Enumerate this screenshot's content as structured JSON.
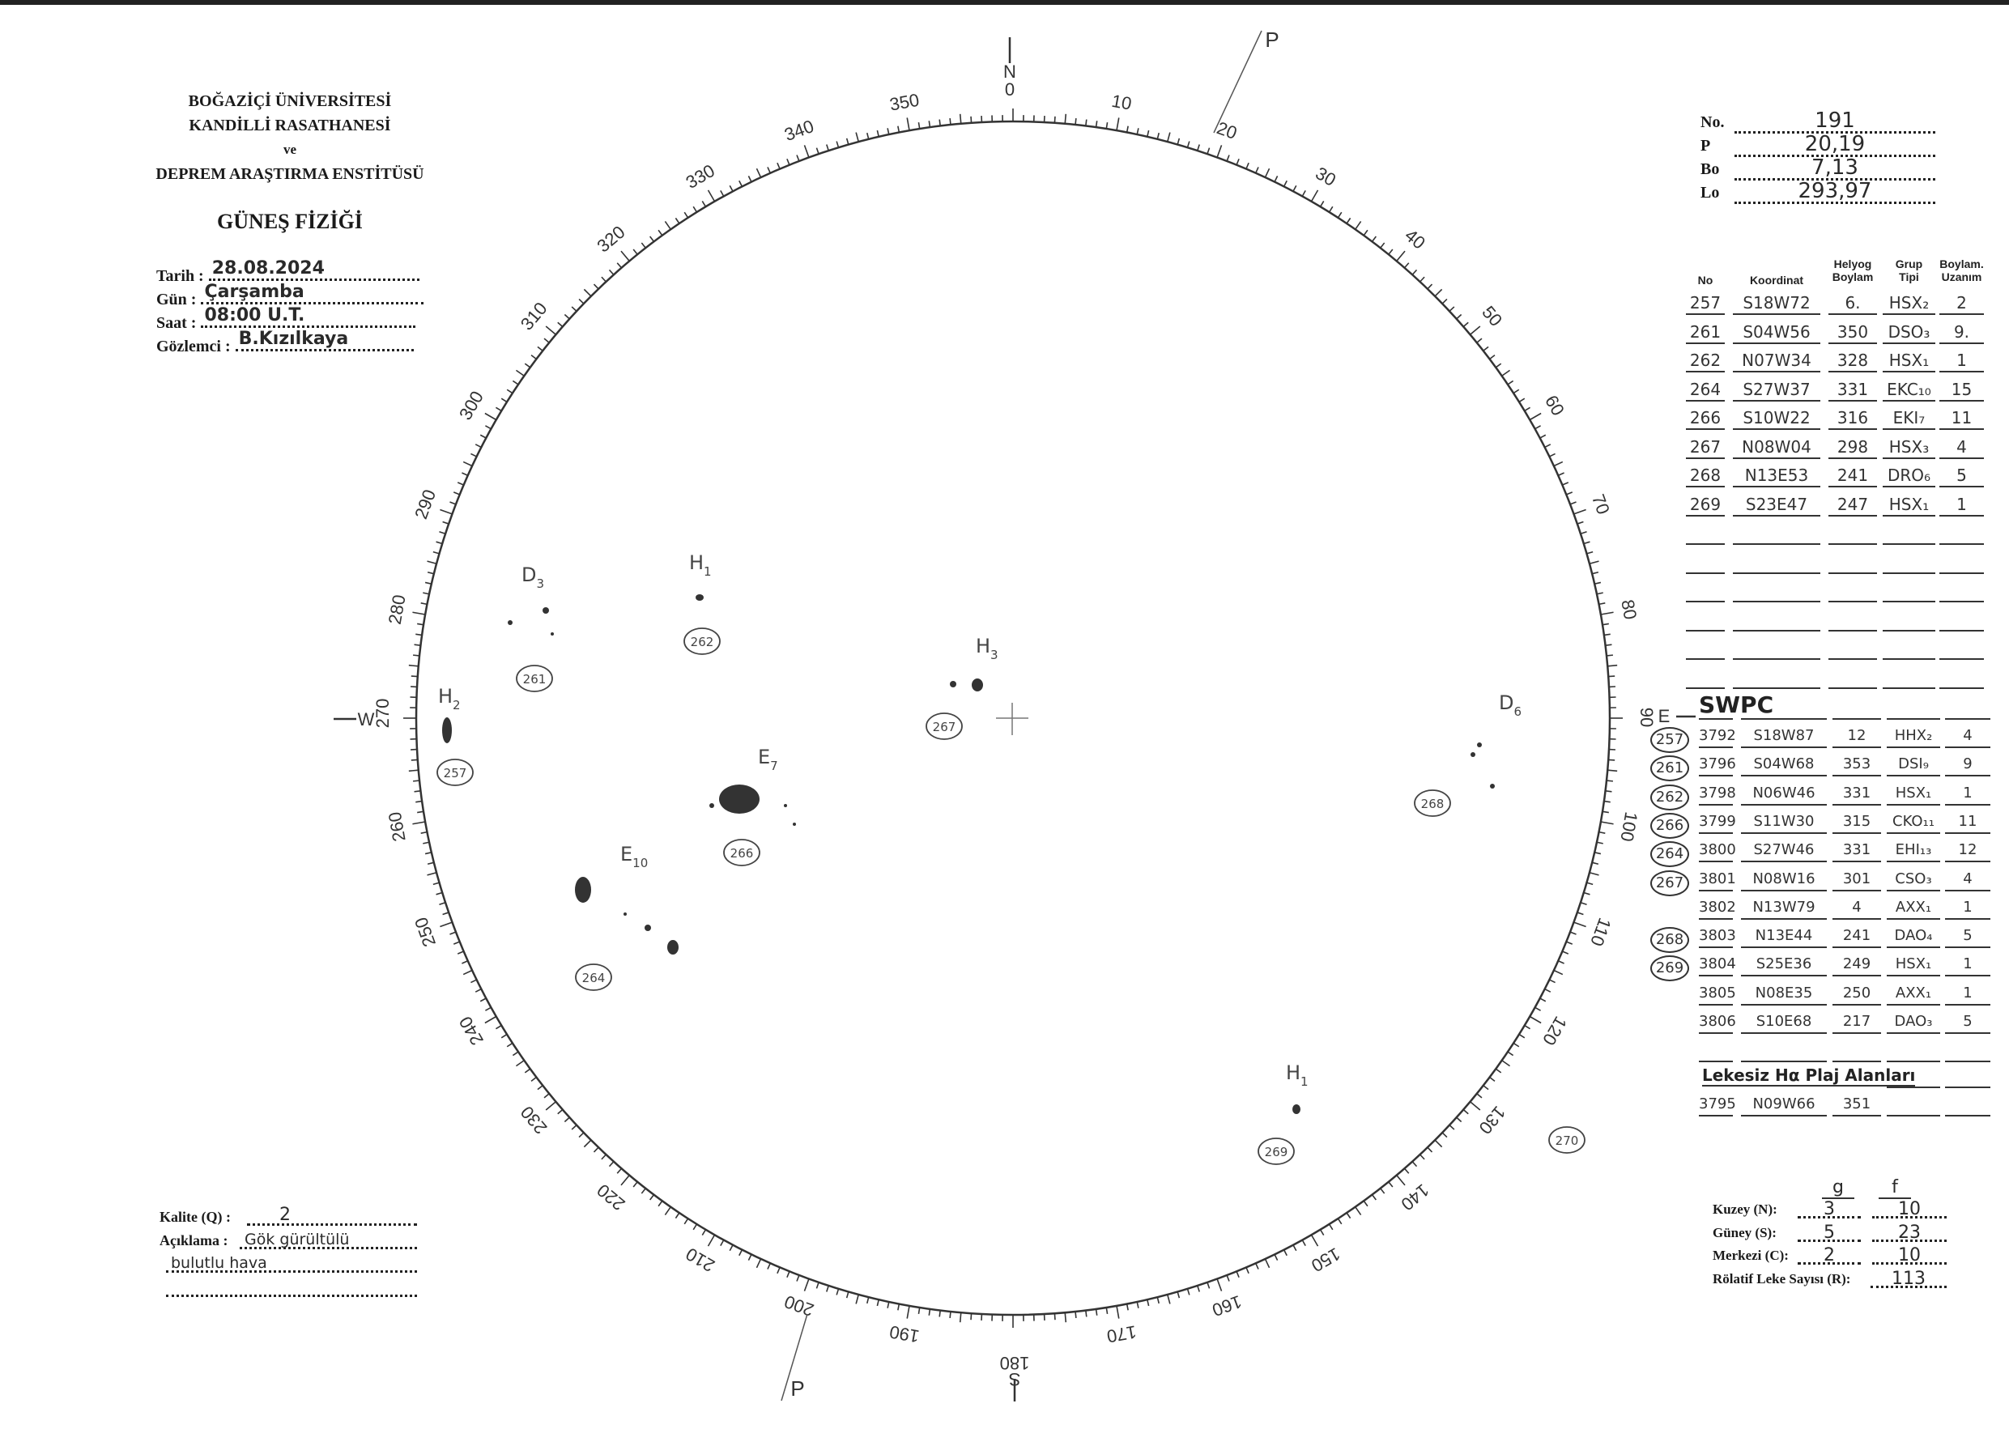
{
  "header": {
    "institution": [
      "BOĞAZİÇİ ÜNİVERSİTESİ",
      "KANDİLLİ RASATHANESİ",
      "ve",
      "DEPREM ARAŞTIRMA ENSTİTÜSÜ"
    ],
    "department": "GÜNEŞ FİZİĞİ",
    "fields": [
      {
        "label": "Tarih :",
        "value": "28.08.2024"
      },
      {
        "label": "Gün :",
        "value": "Çarşamba"
      },
      {
        "label": "Saat :",
        "value": "08:00    U.T."
      },
      {
        "label": "Gözlemci :",
        "value": "B.Kızılkaya"
      }
    ]
  },
  "params": [
    {
      "label": "No.",
      "value": "191"
    },
    {
      "label": "P",
      "value": "20,19"
    },
    {
      "label": "Bo",
      "value": "7,13"
    },
    {
      "label": "Lo",
      "value": "293,97"
    }
  ],
  "groups_table": {
    "headers": [
      "No",
      "Koordinat",
      "Helyog\nBoylam",
      "Grup\nTipi",
      "Boylam.\nUzanım"
    ],
    "rows": [
      [
        "257",
        "S18W72",
        "6.",
        "HSX₂",
        "2"
      ],
      [
        "261",
        "S04W56",
        "350",
        "DSO₃",
        "9."
      ],
      [
        "262",
        "N07W34",
        "328",
        "HSX₁",
        "1"
      ],
      [
        "264",
        "S27W37",
        "331",
        "EKC₁₀",
        "15"
      ],
      [
        "266",
        "S10W22",
        "316",
        "EKI₇",
        "11"
      ],
      [
        "267",
        "N08W04",
        "298",
        "HSX₃",
        "4"
      ],
      [
        "268",
        "N13E53",
        "241",
        "DRO₆",
        "5"
      ],
      [
        "269",
        "S23E47",
        "247",
        "HSX₁",
        "1"
      ]
    ]
  },
  "swpc": {
    "title": "SWPC",
    "rows": [
      [
        "257",
        "3792",
        "S18W87",
        "12",
        "HHX₂",
        "4"
      ],
      [
        "261",
        "3796",
        "S04W68",
        "353",
        "DSI₉",
        "9"
      ],
      [
        "262",
        "3798",
        "N06W46",
        "331",
        "HSX₁",
        "1"
      ],
      [
        "266",
        "3799",
        "S11W30",
        "315",
        "CKO₁₁",
        "11"
      ],
      [
        "264",
        "3800",
        "S27W46",
        "331",
        "EHI₁₃",
        "12"
      ],
      [
        "267",
        "3801",
        "N08W16",
        "301",
        "CSO₃",
        "4"
      ],
      [
        "",
        "3802",
        "N13W79",
        "4",
        "AXX₁",
        "1"
      ],
      [
        "268",
        "3803",
        "N13E44",
        "241",
        "DAO₄",
        "5"
      ],
      [
        "269",
        "3804",
        "S25E36",
        "249",
        "HSX₁",
        "1"
      ],
      [
        "",
        "3805",
        "N08E35",
        "250",
        "AXX₁",
        "1"
      ],
      [
        "",
        "3806",
        "S10E68",
        "217",
        "DAO₃",
        "5"
      ]
    ],
    "plage_title": "Lekesiz Hα Plaj Alanları",
    "plage_rows": [
      [
        "3795",
        "N09W66",
        "351"
      ]
    ]
  },
  "counts": {
    "col_g": "g",
    "col_f": "f",
    "rows": [
      {
        "label": "Kuzey (N):",
        "g": "3",
        "f": "10"
      },
      {
        "label": "Güney (S):",
        "g": "5",
        "f": "23"
      },
      {
        "label": "Merkezi (C):",
        "g": "2",
        "f": "10"
      }
    ],
    "relative_label": "Rölatif Leke Sayısı (R):",
    "relative_value": "113"
  },
  "quality": {
    "kalite_label": "Kalite (Q) :",
    "kalite_value": "2",
    "aciklama_label": "Açıklama :",
    "aciklama_line1": "Gök gürültülü",
    "aciklama_line2": "bulutlu    hava"
  },
  "disk": {
    "north": "N",
    "north_deg": "0",
    "south": "S",
    "south_deg": "180",
    "west": "W",
    "east": "E",
    "pole": "P",
    "pole2": "P",
    "scale_labels": [
      "0",
      "10",
      "20",
      "30",
      "40",
      "50",
      "60",
      "70",
      "80",
      "90",
      "100",
      "110",
      "120",
      "130",
      "140",
      "150",
      "160",
      "170",
      "180",
      "190",
      "200",
      "210",
      "220",
      "230",
      "240",
      "250",
      "260",
      "270",
      "280",
      "290",
      "300",
      "310",
      "320",
      "330",
      "340",
      "350"
    ],
    "groups": [
      {
        "letter": "D",
        "sub": "3",
        "id": "261"
      },
      {
        "letter": "H",
        "sub": "1",
        "id": "262"
      },
      {
        "letter": "H",
        "sub": "3",
        "id": "267"
      },
      {
        "letter": "H",
        "sub": "2",
        "id": "257"
      },
      {
        "letter": "E",
        "sub": "7",
        "id": "266"
      },
      {
        "letter": "E",
        "sub": "10",
        "id": "264"
      },
      {
        "letter": "D",
        "sub": "6",
        "id": "268"
      },
      {
        "letter": "H",
        "sub": "1",
        "id": "269"
      },
      {
        "letter": "",
        "sub": "",
        "id": "270"
      }
    ]
  }
}
